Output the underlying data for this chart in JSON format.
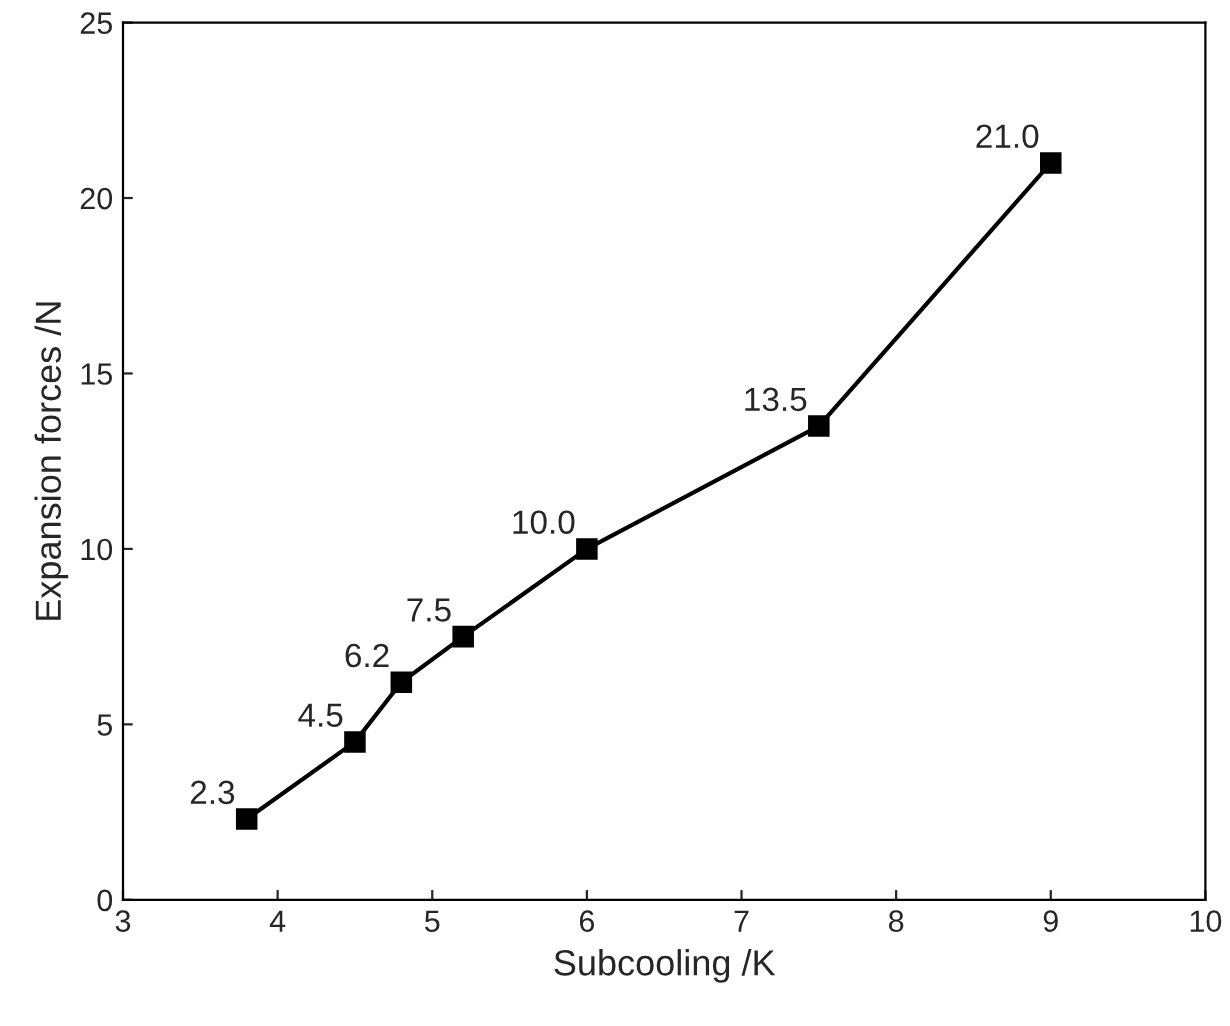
{
  "chart_data": {
    "type": "line",
    "xlabel": "Subcooling /K",
    "ylabel": "Expansion forces /N",
    "x": [
      3.8,
      4.5,
      4.8,
      5.2,
      6.0,
      7.5,
      9.0
    ],
    "series": [
      {
        "color": "#000000",
        "values": [
          2.3,
          4.5,
          6.2,
          7.5,
          10.0,
          13.5,
          21.0
        ],
        "value_labels": [
          "2.3",
          "4.5",
          "6.2",
          "7.5",
          "10.0",
          "13.5",
          "21.0"
        ]
      }
    ],
    "xlim": [
      3,
      10
    ],
    "xticks": [
      3,
      4,
      5,
      6,
      7,
      8,
      9,
      10
    ],
    "ylim": [
      0,
      25
    ],
    "yticks": [
      0,
      5,
      10,
      15,
      20,
      25
    ],
    "marker": "square",
    "line_style": "solid",
    "grid": false,
    "legend": false
  }
}
